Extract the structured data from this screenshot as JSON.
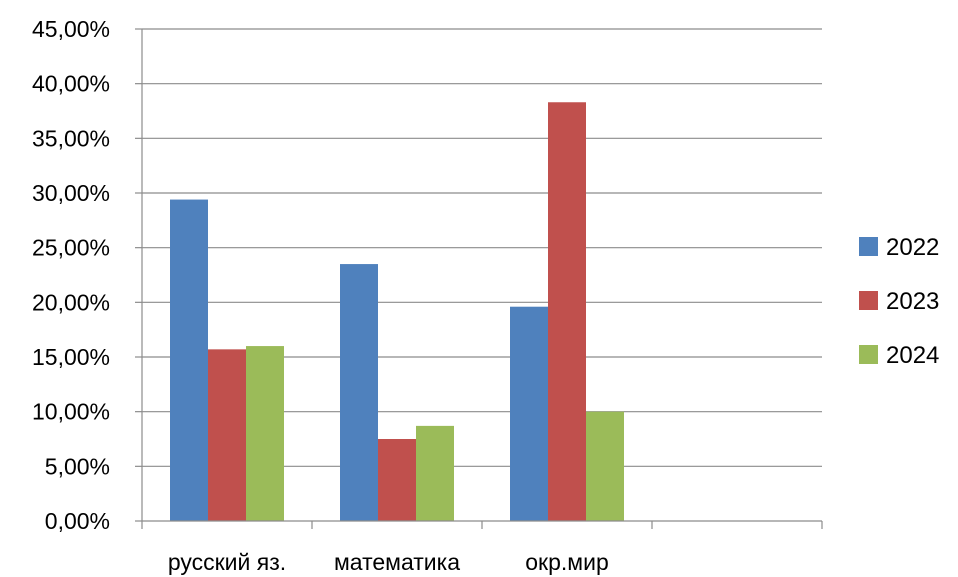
{
  "chart_data": {
    "type": "bar",
    "categories": [
      "русский яз.",
      "математика",
      "окр.мир",
      ""
    ],
    "series": [
      {
        "name": "2022",
        "color": "#4f81bd",
        "values": [
          29.4,
          23.5,
          19.6,
          null
        ]
      },
      {
        "name": "2023",
        "color": "#c0504d",
        "values": [
          15.7,
          7.5,
          38.3,
          null
        ]
      },
      {
        "name": "2024",
        "color": "#9bbb59",
        "values": [
          16.0,
          8.7,
          10.0,
          null
        ]
      }
    ],
    "title": "",
    "xlabel": "",
    "ylabel": "",
    "ylim": [
      0,
      45
    ],
    "yticks": [
      "0,00%",
      "5,00%",
      "10,00%",
      "15,00%",
      "20,00%",
      "25,00%",
      "30,00%",
      "35,00%",
      "40,00%",
      "45,00%"
    ],
    "grid": true,
    "legend_position": "right"
  }
}
